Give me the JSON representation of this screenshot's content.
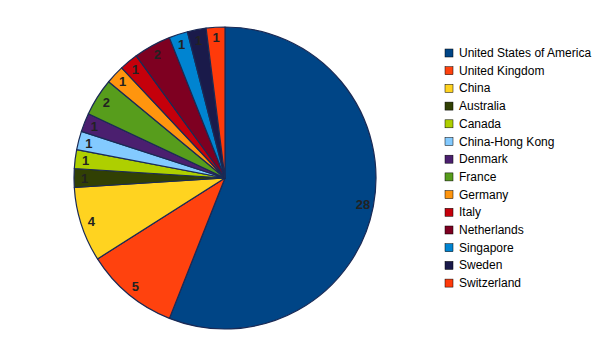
{
  "chart_data": {
    "type": "pie",
    "categories": [
      "United States of America",
      "United Kingdom",
      "China",
      "Australia",
      "Canada",
      "China-Hong Kong",
      "Denmark",
      "France",
      "Germany",
      "Italy",
      "Netherlands",
      "Singapore",
      "Sweden",
      "Switzerland"
    ],
    "values": [
      28,
      5,
      4,
      1,
      1,
      1,
      1,
      2,
      1,
      1,
      2,
      1,
      1,
      1
    ],
    "colors": [
      "#004586",
      "#ff420e",
      "#ffd320",
      "#314004",
      "#aecf00",
      "#83caff",
      "#4b1f6f",
      "#579d1c",
      "#ff950e",
      "#c5000b",
      "#7e0021",
      "#0084d1",
      "#1a1a4a",
      "#ff3a0a"
    ],
    "data_labels": true,
    "legend": "right"
  }
}
